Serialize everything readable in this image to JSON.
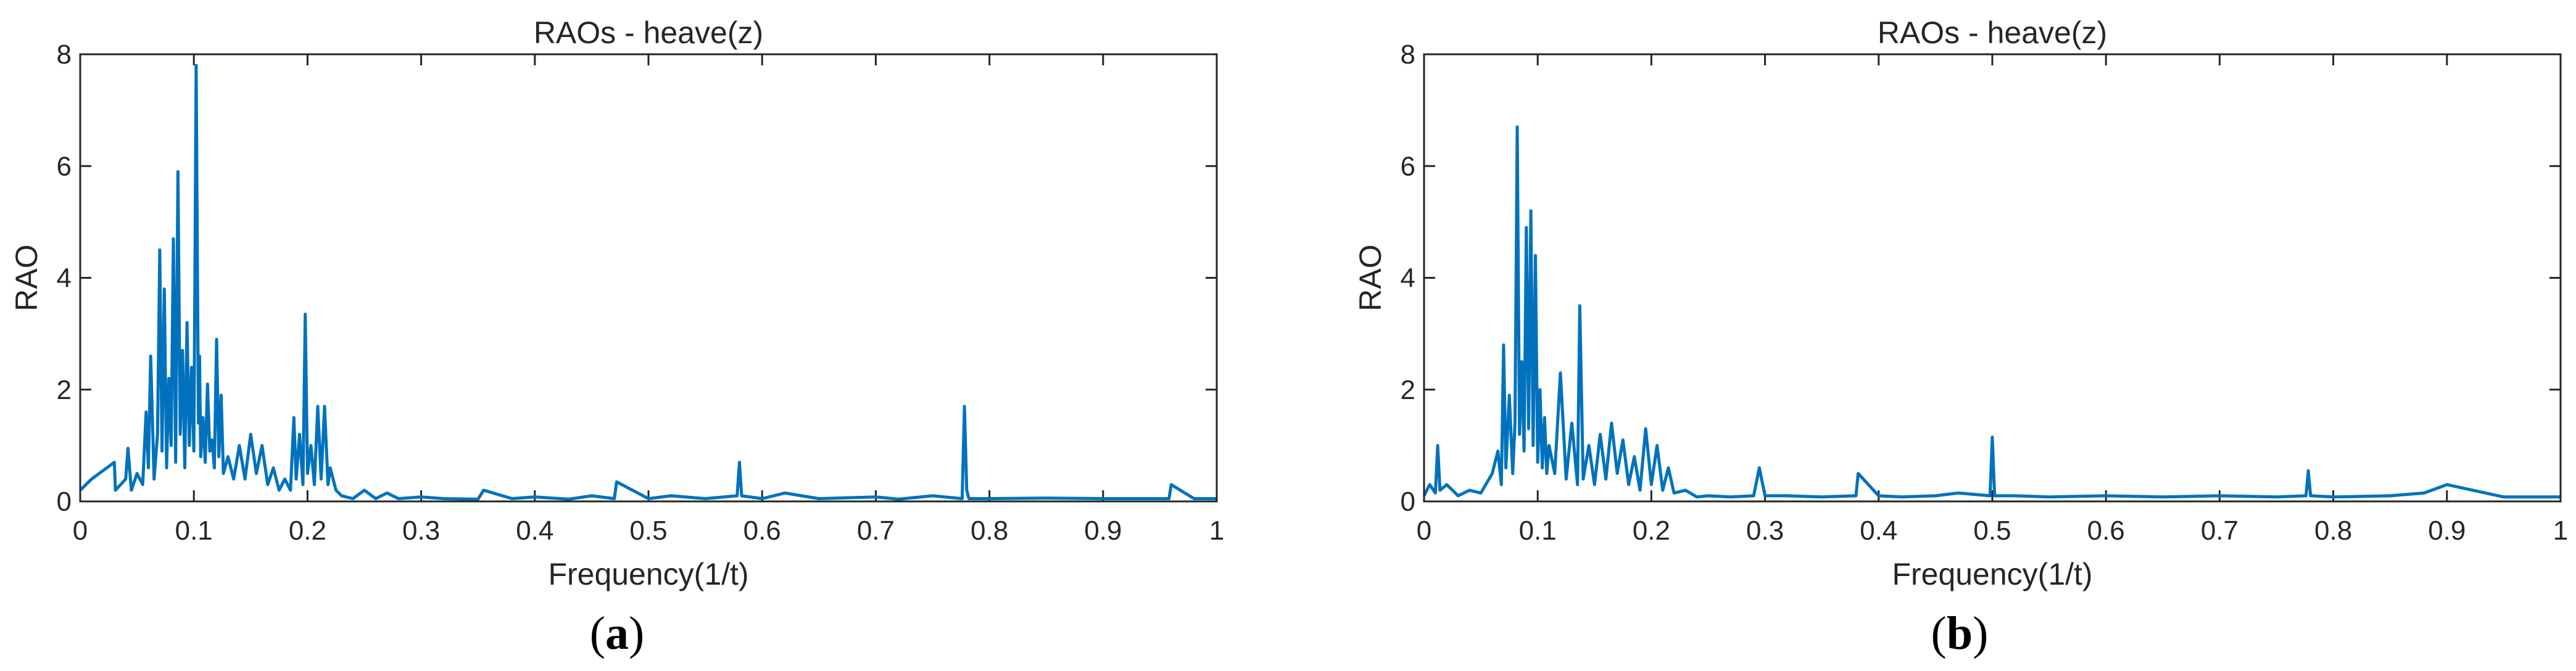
{
  "figure": {
    "panel_labels": [
      "(a)",
      "(b)"
    ]
  },
  "colors": {
    "series": "#0072BD",
    "axes": "#262626",
    "background": "#ffffff"
  },
  "chart_data": [
    {
      "type": "line",
      "title": "RAOs - heave(z)",
      "xlabel": "Frequency(1/t)",
      "ylabel": "RAO",
      "xlim": [
        0,
        1
      ],
      "ylim": [
        0,
        8
      ],
      "xticks": [
        0,
        0.1,
        0.2,
        0.3,
        0.4,
        0.5,
        0.6,
        0.7,
        0.8,
        0.9,
        1
      ],
      "xtick_labels": [
        "0",
        "0.1",
        "0.2",
        "0.3",
        "0.4",
        "0.5",
        "0.6",
        "0.7",
        "0.8",
        "0.9",
        "1"
      ],
      "yticks": [
        0,
        2,
        4,
        6,
        8
      ],
      "ytick_labels": [
        "0",
        "2",
        "4",
        "6",
        "8"
      ],
      "grid": false,
      "series": [
        {
          "x": [
            0,
            0.01,
            0.02,
            0.03,
            0.031,
            0.04,
            0.042,
            0.045,
            0.05,
            0.055,
            0.058,
            0.06,
            0.062,
            0.065,
            0.068,
            0.07,
            0.072,
            0.074,
            0.076,
            0.078,
            0.08,
            0.082,
            0.084,
            0.086,
            0.088,
            0.09,
            0.092,
            0.094,
            0.096,
            0.098,
            0.1,
            0.102,
            0.104,
            0.105,
            0.106,
            0.108,
            0.11,
            0.112,
            0.114,
            0.116,
            0.118,
            0.12,
            0.122,
            0.124,
            0.126,
            0.13,
            0.135,
            0.14,
            0.145,
            0.15,
            0.155,
            0.16,
            0.165,
            0.17,
            0.175,
            0.18,
            0.185,
            0.188,
            0.19,
            0.193,
            0.196,
            0.198,
            0.2,
            0.203,
            0.206,
            0.209,
            0.212,
            0.215,
            0.218,
            0.22,
            0.225,
            0.23,
            0.24,
            0.25,
            0.26,
            0.27,
            0.28,
            0.3,
            0.32,
            0.35,
            0.355,
            0.38,
            0.4,
            0.43,
            0.45,
            0.47,
            0.472,
            0.5,
            0.52,
            0.55,
            0.578,
            0.58,
            0.582,
            0.6,
            0.62,
            0.65,
            0.7,
            0.72,
            0.75,
            0.776,
            0.778,
            0.78,
            0.782,
            0.8,
            0.85,
            0.9,
            0.95,
            0.958,
            0.96,
            0.98,
            1
          ],
          "y": [
            0.2,
            0.4,
            0.55,
            0.7,
            0.2,
            0.4,
            0.95,
            0.2,
            0.5,
            0.3,
            1.6,
            0.6,
            2.6,
            0.4,
            1.2,
            4.5,
            0.9,
            3.8,
            0.6,
            2.2,
            1.0,
            4.7,
            0.7,
            5.9,
            1.2,
            2.7,
            0.6,
            3.2,
            1.0,
            2.4,
            0.9,
            7.8,
            1.4,
            2.6,
            0.8,
            1.5,
            0.7,
            2.1,
            0.9,
            1.1,
            0.6,
            2.9,
            0.8,
            1.9,
            0.5,
            0.8,
            0.4,
            1.0,
            0.4,
            1.2,
            0.5,
            1.0,
            0.3,
            0.6,
            0.2,
            0.4,
            0.2,
            1.5,
            0.4,
            1.2,
            0.3,
            3.35,
            0.5,
            1.0,
            0.3,
            1.7,
            0.4,
            1.7,
            0.3,
            0.6,
            0.2,
            0.1,
            0.05,
            0.2,
            0.05,
            0.15,
            0.05,
            0.08,
            0.05,
            0.04,
            0.2,
            0.05,
            0.08,
            0.04,
            0.1,
            0.05,
            0.35,
            0.05,
            0.1,
            0.05,
            0.1,
            0.7,
            0.1,
            0.05,
            0.15,
            0.05,
            0.08,
            0.04,
            0.1,
            0.05,
            1.7,
            0.2,
            0.05,
            0.05,
            0.06,
            0.05,
            0.05,
            0.05,
            0.3,
            0.05,
            0.05
          ]
        }
      ]
    },
    {
      "type": "line",
      "title": "RAOs - heave(z)",
      "xlabel": "Frequency(1/t)",
      "ylabel": "RAO",
      "xlim": [
        0,
        1
      ],
      "ylim": [
        0,
        8
      ],
      "xticks": [
        0,
        0.1,
        0.2,
        0.3,
        0.4,
        0.5,
        0.6,
        0.7,
        0.8,
        0.9,
        1
      ],
      "xtick_labels": [
        "0",
        "0.1",
        "0.2",
        "0.3",
        "0.4",
        "0.5",
        "0.6",
        "0.7",
        "0.8",
        "0.9",
        "1"
      ],
      "yticks": [
        0,
        2,
        4,
        6,
        8
      ],
      "ytick_labels": [
        "0",
        "2",
        "4",
        "6",
        "8"
      ],
      "grid": false,
      "series": [
        {
          "x": [
            0,
            0.005,
            0.01,
            0.012,
            0.014,
            0.02,
            0.03,
            0.04,
            0.05,
            0.06,
            0.065,
            0.068,
            0.07,
            0.072,
            0.075,
            0.078,
            0.08,
            0.082,
            0.084,
            0.086,
            0.088,
            0.09,
            0.092,
            0.094,
            0.096,
            0.098,
            0.1,
            0.102,
            0.104,
            0.106,
            0.108,
            0.11,
            0.115,
            0.12,
            0.125,
            0.13,
            0.135,
            0.137,
            0.14,
            0.145,
            0.15,
            0.155,
            0.16,
            0.165,
            0.17,
            0.175,
            0.18,
            0.185,
            0.19,
            0.195,
            0.2,
            0.205,
            0.21,
            0.215,
            0.22,
            0.23,
            0.24,
            0.25,
            0.27,
            0.29,
            0.295,
            0.3,
            0.32,
            0.35,
            0.38,
            0.382,
            0.4,
            0.42,
            0.45,
            0.47,
            0.498,
            0.5,
            0.502,
            0.52,
            0.55,
            0.6,
            0.65,
            0.7,
            0.75,
            0.776,
            0.778,
            0.78,
            0.8,
            0.85,
            0.88,
            0.9,
            0.95,
            1
          ],
          "y": [
            0.1,
            0.3,
            0.15,
            1.0,
            0.2,
            0.3,
            0.1,
            0.2,
            0.15,
            0.5,
            0.9,
            0.3,
            2.8,
            0.6,
            1.9,
            0.5,
            1.4,
            6.7,
            1.2,
            2.5,
            0.9,
            4.9,
            1.3,
            5.2,
            1.0,
            4.4,
            0.7,
            2.0,
            0.6,
            1.5,
            0.5,
            1.0,
            0.5,
            2.3,
            0.4,
            1.4,
            0.3,
            3.5,
            0.4,
            1.0,
            0.3,
            1.2,
            0.4,
            1.4,
            0.5,
            1.1,
            0.3,
            0.8,
            0.2,
            1.3,
            0.3,
            1.0,
            0.2,
            0.6,
            0.15,
            0.2,
            0.08,
            0.1,
            0.08,
            0.1,
            0.6,
            0.1,
            0.1,
            0.08,
            0.1,
            0.5,
            0.1,
            0.08,
            0.1,
            0.15,
            0.1,
            1.15,
            0.1,
            0.1,
            0.08,
            0.1,
            0.08,
            0.1,
            0.08,
            0.1,
            0.55,
            0.1,
            0.08,
            0.1,
            0.15,
            0.3,
            0.08,
            0.08
          ]
        }
      ]
    }
  ]
}
